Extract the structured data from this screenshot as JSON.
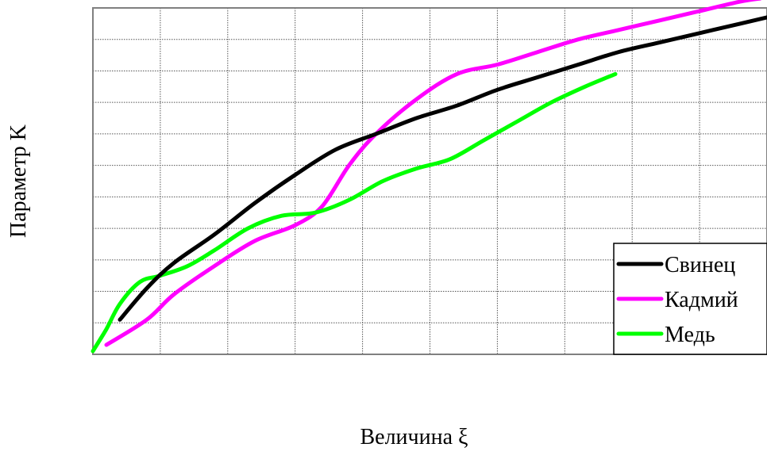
{
  "chart_data": {
    "type": "line",
    "xlabel": "Величина ξ",
    "ylabel": "Параметр K",
    "xlim": [
      0,
      10
    ],
    "ylim": [
      0,
      11
    ],
    "grid": true,
    "tick_labels_shown": false,
    "legend_position": "bottom-right",
    "series": [
      {
        "name": "Свинец",
        "color": "#000000",
        "x": [
          0.4,
          0.8,
          1.2,
          1.8,
          2.4,
          3.0,
          3.6,
          4.2,
          4.8,
          5.4,
          6.0,
          6.6,
          7.2,
          7.8,
          8.4,
          9.0,
          9.6,
          10.0
        ],
        "y": [
          1.1,
          2.1,
          2.9,
          3.8,
          4.8,
          5.7,
          6.5,
          7.0,
          7.5,
          7.9,
          8.4,
          8.8,
          9.2,
          9.6,
          9.9,
          10.2,
          10.5,
          10.7
        ]
      },
      {
        "name": "Кадмий",
        "color": "#ff00ff",
        "x": [
          0.2,
          0.8,
          1.2,
          1.8,
          2.4,
          3.0,
          3.4,
          3.8,
          4.2,
          4.8,
          5.4,
          6.0,
          6.6,
          7.2,
          7.8,
          8.4,
          9.0,
          9.6,
          9.9
        ],
        "y": [
          0.3,
          1.1,
          1.9,
          2.8,
          3.6,
          4.1,
          4.7,
          6.0,
          7.0,
          8.1,
          8.9,
          9.2,
          9.6,
          10.0,
          10.3,
          10.6,
          10.9,
          11.2,
          11.3
        ]
      },
      {
        "name": "Медь",
        "color": "#00ff00",
        "x": [
          0.0,
          0.2,
          0.4,
          0.7,
          1.0,
          1.4,
          1.8,
          2.3,
          2.8,
          3.3,
          3.8,
          4.3,
          4.8,
          5.3,
          5.8,
          6.3,
          6.8,
          7.3,
          7.75
        ],
        "y": [
          0.1,
          0.8,
          1.6,
          2.3,
          2.5,
          2.8,
          3.3,
          4.0,
          4.4,
          4.5,
          4.9,
          5.5,
          5.9,
          6.2,
          6.8,
          7.4,
          8.0,
          8.5,
          8.9
        ]
      }
    ]
  }
}
